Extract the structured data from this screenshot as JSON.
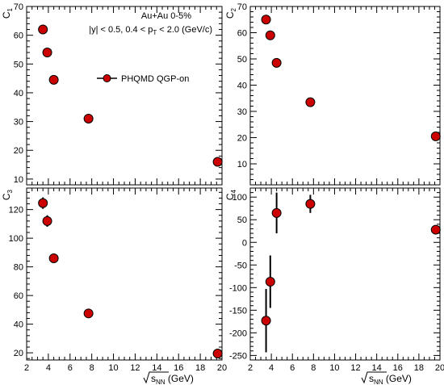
{
  "chart_data": [
    {
      "type": "scatter",
      "id": "c1",
      "ylabel": "C",
      "ylabel_sub": "1",
      "xlim": [
        2,
        20
      ],
      "ylim": [
        8,
        70
      ],
      "yticks": [
        10,
        20,
        30,
        40,
        50,
        60,
        70
      ],
      "xticks": [
        2,
        4,
        6,
        8,
        10,
        12,
        14,
        16,
        18,
        20
      ],
      "show_xtick_labels": false,
      "annotations": [
        {
          "text": "Au+Au 0-5%"
        },
        {
          "text": "|y| < 0.5, 0.4 < p",
          "sub": "T",
          "tail": " < 2.0 (GeV/c)"
        }
      ],
      "legend": {
        "label": "PHQMD QGP-on",
        "placement": "center-right"
      },
      "series": [
        {
          "name": "PHQMD QGP-on",
          "x": [
            3.5,
            3.9,
            4.5,
            7.7,
            19.6
          ],
          "y": [
            62,
            54,
            44.5,
            31,
            16
          ],
          "yerr": [
            0,
            0,
            0,
            0,
            0
          ],
          "color": "#cc0000"
        }
      ]
    },
    {
      "type": "scatter",
      "id": "c2",
      "ylabel": "C",
      "ylabel_sub": "2",
      "xlim": [
        2,
        20
      ],
      "ylim": [
        2,
        70
      ],
      "yticks": [
        10,
        20,
        30,
        40,
        50,
        60,
        70
      ],
      "xticks": [
        2,
        4,
        6,
        8,
        10,
        12,
        14,
        16,
        18,
        20
      ],
      "show_xtick_labels": false,
      "series": [
        {
          "name": "",
          "x": [
            3.5,
            3.9,
            4.5,
            7.7,
            19.6
          ],
          "y": [
            65,
            59,
            48.5,
            33.5,
            20.5
          ],
          "yerr": [
            0,
            0,
            0,
            0,
            0
          ],
          "color": "#cc0000"
        }
      ]
    },
    {
      "type": "scatter",
      "id": "c3",
      "ylabel": "C",
      "ylabel_sub": "3",
      "xlim": [
        2,
        20
      ],
      "ylim": [
        15,
        135
      ],
      "yticks": [
        20,
        40,
        60,
        80,
        100,
        120
      ],
      "xticks": [
        2,
        4,
        6,
        8,
        10,
        12,
        14,
        16,
        18,
        20
      ],
      "show_xtick_labels": true,
      "xlabel": "s",
      "xlabel_sub": "NN",
      "xlabel_unit": "(GeV)",
      "series": [
        {
          "name": "",
          "x": [
            3.5,
            3.9,
            4.5,
            7.7,
            19.6
          ],
          "y": [
            124.5,
            112,
            86,
            47.5,
            19.5
          ],
          "yerr": [
            4,
            4,
            0,
            0,
            0
          ],
          "color": "#cc0000"
        }
      ]
    },
    {
      "type": "scatter",
      "id": "c4",
      "ylabel": "C",
      "ylabel_sub": "4",
      "xlim": [
        2,
        20
      ],
      "ylim": [
        -260,
        120
      ],
      "yticks": [
        -250,
        -200,
        -150,
        -100,
        -50,
        0,
        50,
        100
      ],
      "xticks": [
        2,
        4,
        6,
        8,
        10,
        12,
        14,
        16,
        18,
        20
      ],
      "show_xtick_labels": true,
      "xlabel": "s",
      "xlabel_sub": "NN",
      "xlabel_unit": "(GeV)",
      "series": [
        {
          "name": "",
          "x": [
            3.5,
            3.9,
            4.5,
            7.7,
            19.6
          ],
          "y": [
            -173,
            -87,
            65,
            85,
            28
          ],
          "yerr": [
            70,
            58,
            45,
            20,
            0
          ],
          "color": "#cc0000"
        }
      ]
    }
  ]
}
